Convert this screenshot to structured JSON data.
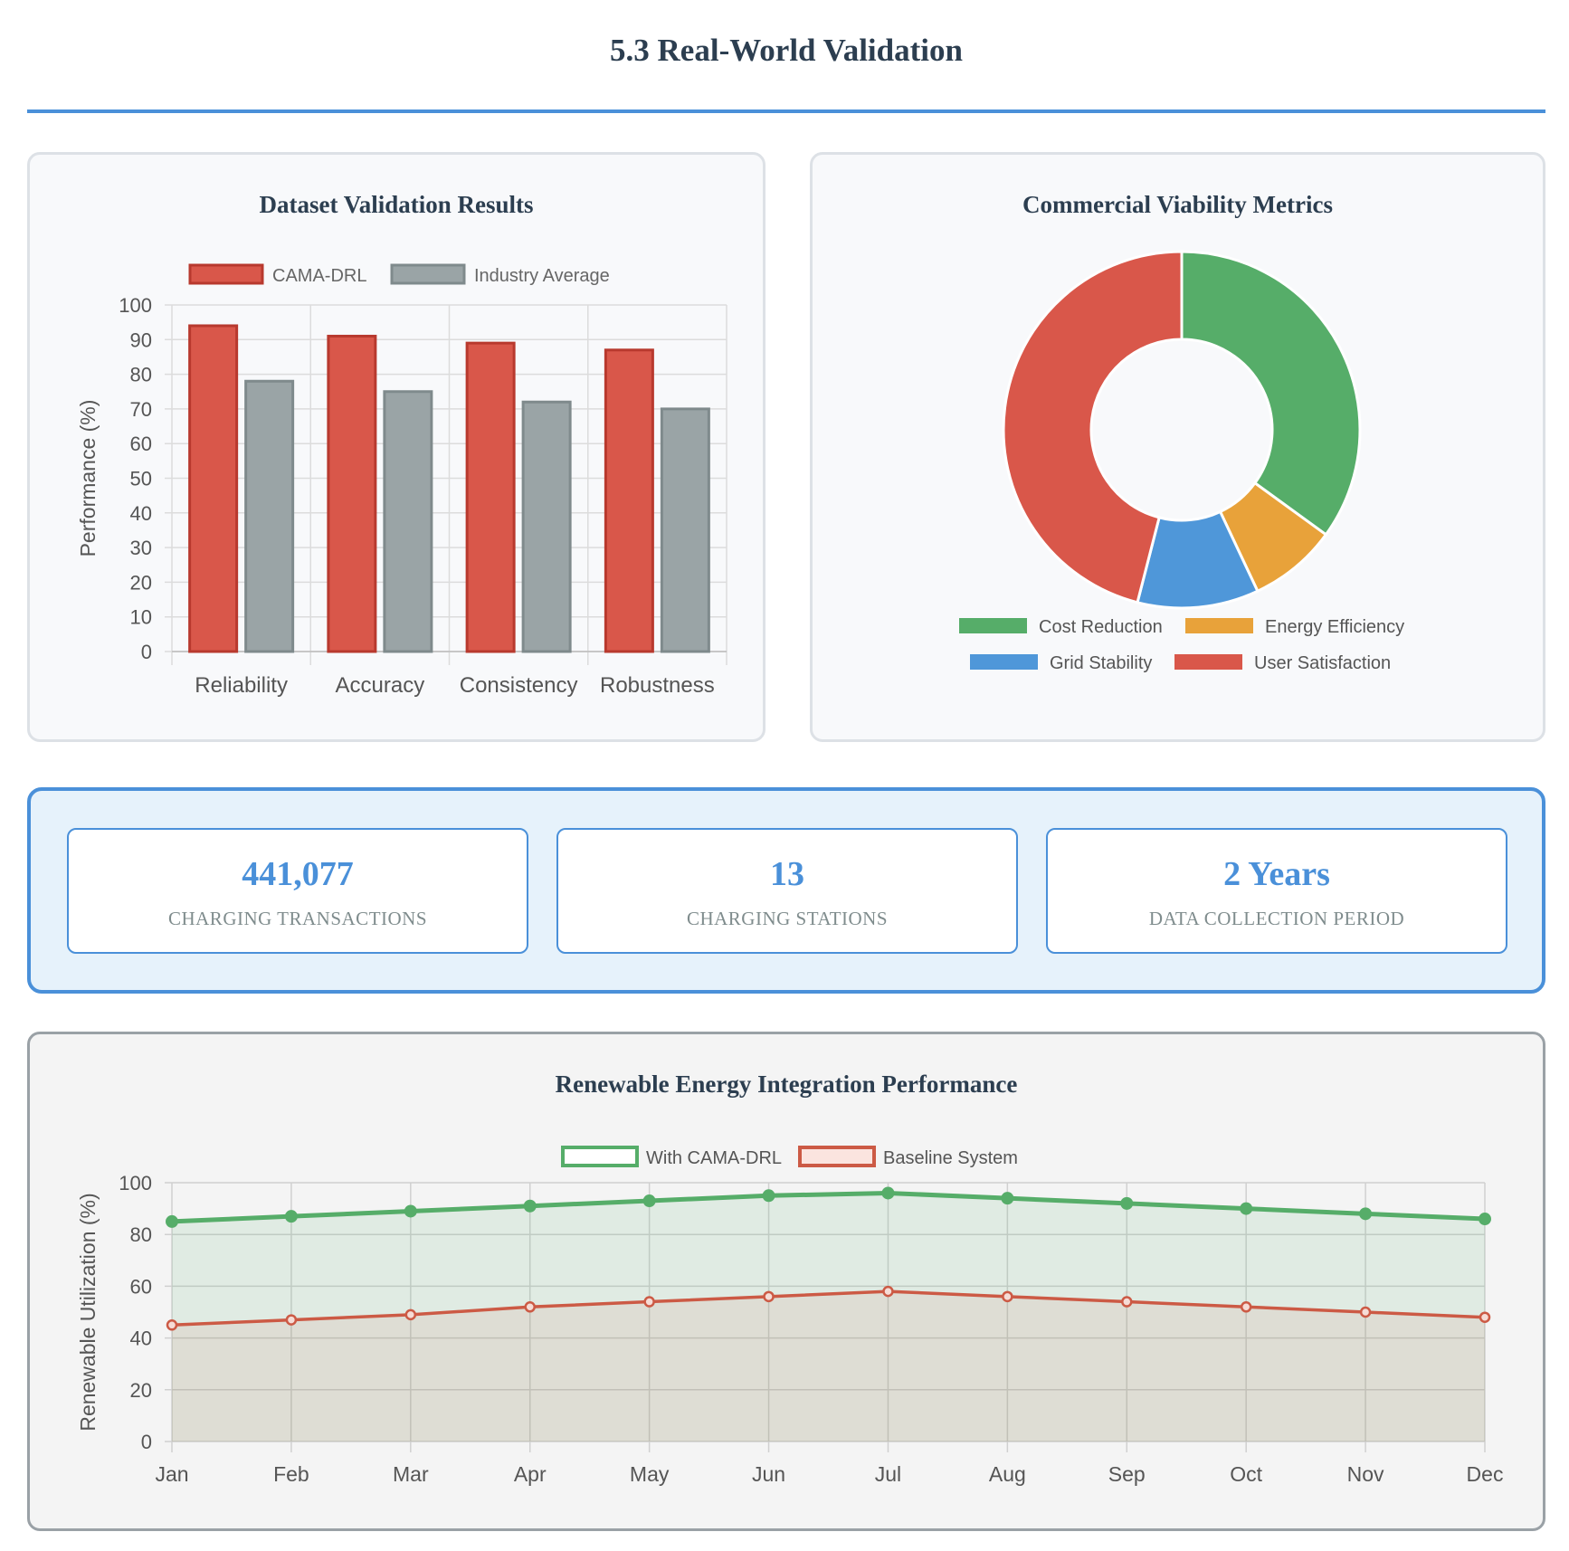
{
  "page": {
    "title": "5.3 Real-World Validation"
  },
  "charts": {
    "bar_title": "Dataset Validation Results",
    "donut_title": "Commercial Viability Metrics",
    "line_title": "Renewable Energy Integration Performance"
  },
  "stats": [
    {
      "value": "441,077",
      "label": "CHARGING TRANSACTIONS"
    },
    {
      "value": "13",
      "label": "CHARGING STATIONS"
    },
    {
      "value": "2 Years",
      "label": "DATA COLLECTION PERIOD"
    }
  ],
  "colors": {
    "cama": "#d9574a",
    "cama_border": "#b8392e",
    "industry": "#9aa4a6",
    "industry_border": "#7f8a8c",
    "green": "#56ad69",
    "orange": "#e8a23a",
    "blue": "#4f97d9",
    "red": "#d9574a",
    "accent": "#4a90d9"
  },
  "chart_data": [
    {
      "type": "bar",
      "title": "Dataset Validation Results",
      "categories": [
        "Reliability",
        "Accuracy",
        "Consistency",
        "Robustness"
      ],
      "series": [
        {
          "name": "CAMA-DRL",
          "values": [
            94,
            91,
            89,
            87
          ]
        },
        {
          "name": "Industry Average",
          "values": [
            78,
            75,
            72,
            70
          ]
        }
      ],
      "xlabel": "",
      "ylabel": "Performance (%)",
      "ylim": [
        0,
        100
      ],
      "yticks": [
        "0",
        "10",
        "20",
        "30",
        "40",
        "50",
        "60",
        "70",
        "80",
        "90",
        "100"
      ],
      "legend": "top"
    },
    {
      "type": "pie",
      "title": "Commercial Viability Metrics",
      "labels": [
        "Cost Reduction",
        "Energy Efficiency",
        "Grid Stability",
        "User Satisfaction"
      ],
      "values": [
        35,
        8,
        11,
        46
      ],
      "legend": "bottom"
    },
    {
      "type": "line",
      "title": "Renewable Energy Integration Performance",
      "categories": [
        "Jan",
        "Feb",
        "Mar",
        "Apr",
        "May",
        "Jun",
        "Jul",
        "Aug",
        "Sep",
        "Oct",
        "Nov",
        "Dec"
      ],
      "series": [
        {
          "name": "With CAMA-DRL",
          "values": [
            85,
            87,
            89,
            91,
            93,
            95,
            96,
            94,
            92,
            90,
            88,
            86
          ]
        },
        {
          "name": "Baseline System",
          "values": [
            45,
            47,
            49,
            52,
            54,
            56,
            58,
            56,
            54,
            52,
            50,
            48
          ]
        }
      ],
      "xlabel": "",
      "ylabel": "Renewable Utilization (%)",
      "ylim": [
        0,
        100
      ],
      "yticks": [
        "0",
        "20",
        "40",
        "60",
        "80",
        "100"
      ],
      "legend": "top"
    }
  ]
}
